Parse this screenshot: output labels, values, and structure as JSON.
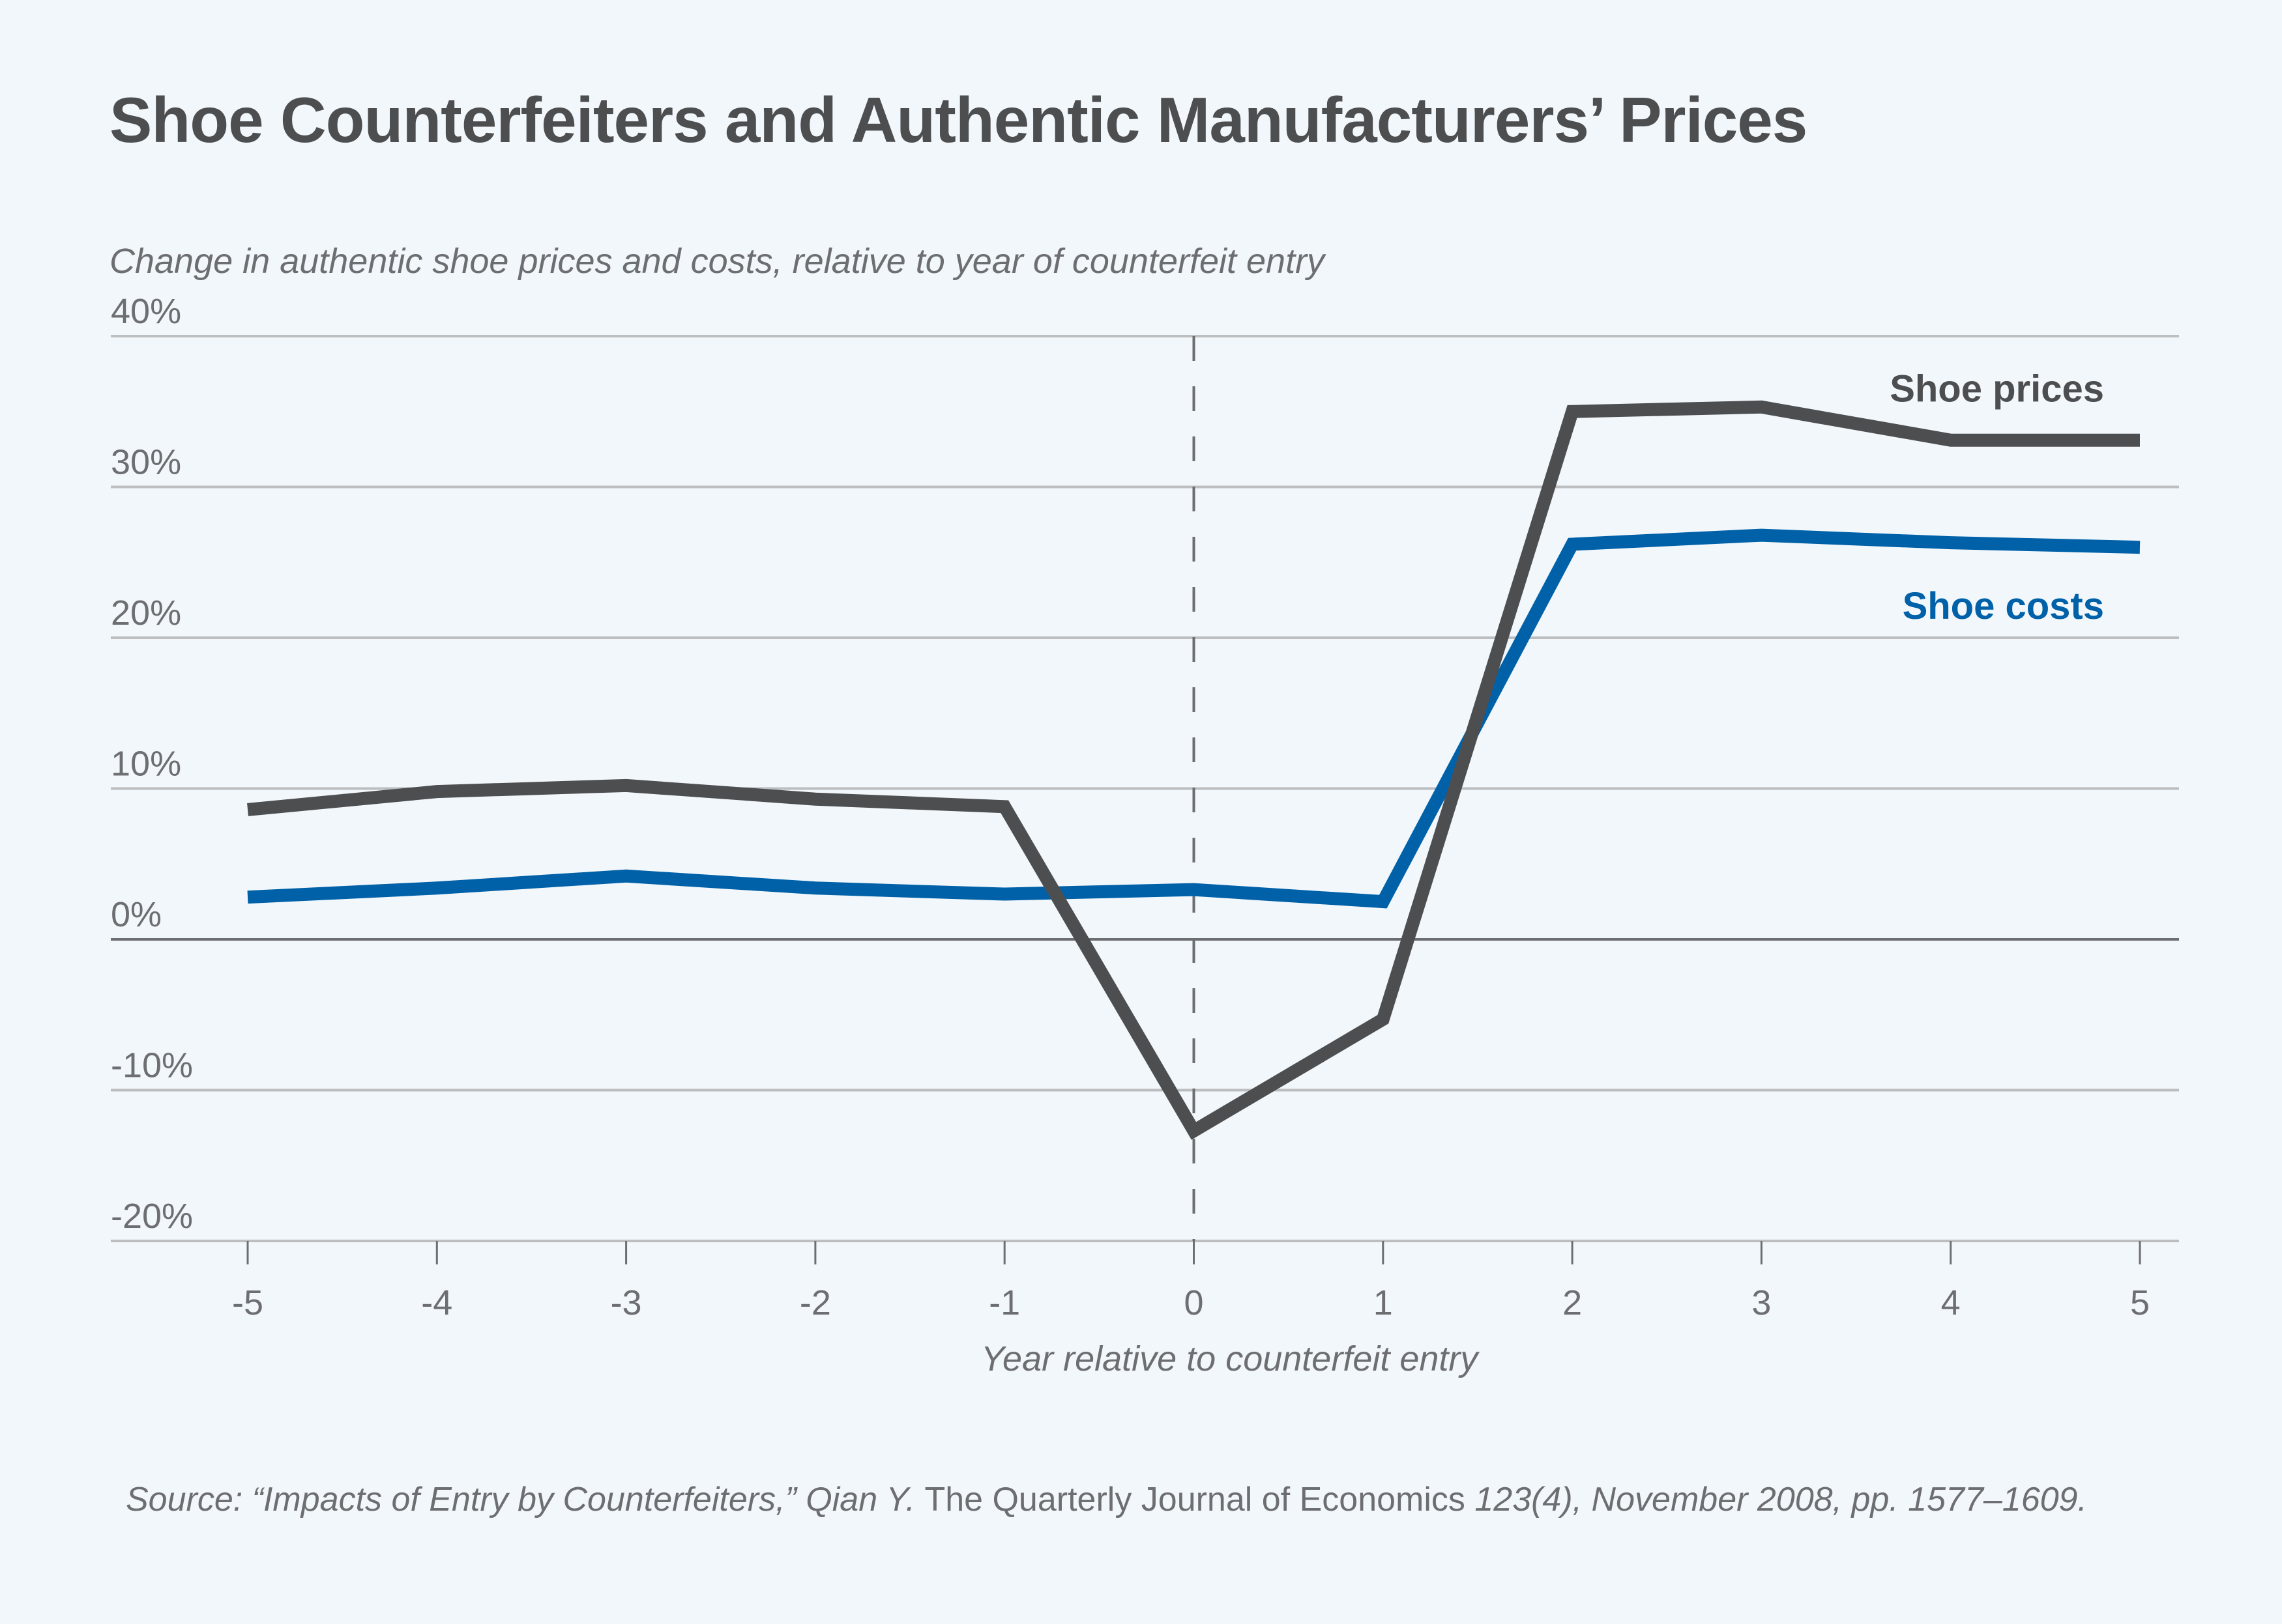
{
  "chart_data": {
    "type": "line",
    "title": "Shoe Counterfeiters and Authentic Manufacturers’ Prices",
    "subtitle": "Change in authentic shoe prices and costs, relative to year of counterfeit entry",
    "xlabel": "Year relative to counterfeit entry",
    "ylabel": "Change in authentic shoe prices and costs, relative to year of counterfeit entry",
    "x": [
      -5,
      -4,
      -3,
      -2,
      -1,
      0,
      1,
      2,
      3,
      4,
      5
    ],
    "x_tick_labels": [
      "-5",
      "-4",
      "-3",
      "-2",
      "-1",
      "0",
      "1",
      "2",
      "3",
      "4",
      "5"
    ],
    "y_ticks": [
      -20,
      -10,
      0,
      10,
      20,
      30,
      40
    ],
    "y_tick_labels": [
      "-20%",
      "-10%",
      "0%",
      "10%",
      "20%",
      "30%",
      "40%"
    ],
    "xlim": [
      -5,
      5
    ],
    "ylim": [
      -20,
      40
    ],
    "grid": true,
    "reference_line": {
      "x": 0,
      "style": "dashed",
      "meaning": "year of counterfeit entry"
    },
    "legend": "inline-labels-right",
    "series": [
      {
        "name": "Shoe prices",
        "color": "#4d4e50",
        "values": [
          8.6,
          9.8,
          10.2,
          9.3,
          8.8,
          -12.7,
          -5.3,
          35.0,
          35.3,
          33.1,
          33.1
        ]
      },
      {
        "name": "Shoe costs",
        "color": "#0061a8",
        "values": [
          2.8,
          3.4,
          4.2,
          3.4,
          3.0,
          3.3,
          2.5,
          26.2,
          26.8,
          26.3,
          26.0
        ]
      }
    ]
  },
  "source": {
    "prefix": "Source: “Impacts of Entry by Counterfeiters,” Qian Y. ",
    "journal": "The Quarterly Journal of Economics",
    "suffix": " 123(4), November 2008, pp. 1577–1609."
  },
  "colors": {
    "background": "#f2f7fb",
    "text": "#6d6e71",
    "title": "#4d4e50",
    "gridline": "#bcbec0",
    "zero_line": "#6d6e71"
  }
}
